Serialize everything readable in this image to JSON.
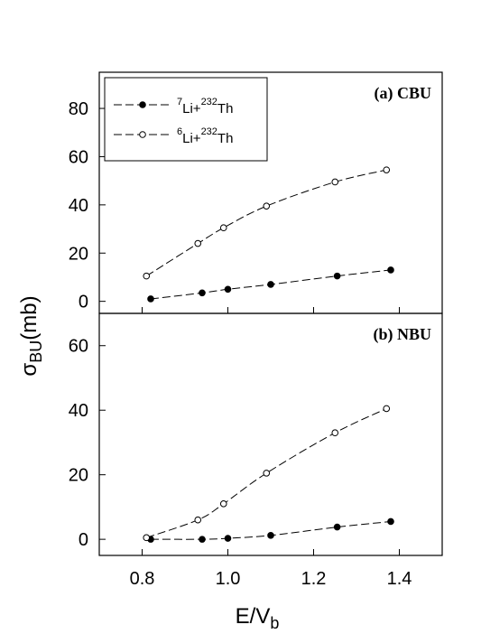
{
  "chart_data": [
    {
      "type": "line",
      "panel_label": "(a) CBU",
      "xlim": [
        0.7,
        1.5
      ],
      "ylim": [
        -5,
        95
      ],
      "x_ticks": [
        "0.8",
        "1.0",
        "1.2",
        "1.4"
      ],
      "y_ticks": [
        "0",
        "20",
        "40",
        "60",
        "80"
      ],
      "series": [
        {
          "legend_isotope": "7",
          "legend_mid": "Li+",
          "legend_target_mass": "232",
          "legend_target": "Th",
          "marker": "filled-circle",
          "x": [
            0.82,
            0.94,
            1.0,
            1.1,
            1.255,
            1.38
          ],
          "y": [
            1.0,
            3.5,
            5.0,
            7.0,
            10.5,
            13.0
          ]
        },
        {
          "legend_isotope": "6",
          "legend_mid": "Li+",
          "legend_target_mass": "232",
          "legend_target": "Th",
          "marker": "open-circle",
          "x": [
            0.81,
            0.93,
            0.99,
            1.09,
            1.25,
            1.37
          ],
          "y": [
            10.5,
            24.0,
            30.5,
            39.5,
            49.5,
            54.5
          ]
        }
      ]
    },
    {
      "type": "line",
      "panel_label": "(b) NBU",
      "xlim": [
        0.7,
        1.5
      ],
      "ylim": [
        -5,
        70
      ],
      "x_ticks": [
        "0.8",
        "1.0",
        "1.2",
        "1.4"
      ],
      "y_ticks": [
        "0",
        "20",
        "40",
        "60"
      ],
      "series": [
        {
          "marker": "filled-circle",
          "x": [
            0.82,
            0.94,
            1.0,
            1.1,
            1.255,
            1.38
          ],
          "y": [
            0.0,
            0.0,
            0.3,
            1.2,
            3.8,
            5.5
          ]
        },
        {
          "marker": "open-circle",
          "x": [
            0.81,
            0.93,
            0.99,
            1.09,
            1.25,
            1.37
          ],
          "y": [
            0.5,
            6.0,
            11.0,
            20.5,
            33.0,
            40.5
          ]
        }
      ]
    }
  ],
  "axes": {
    "y_symbol": "σ",
    "y_sub": "BU",
    "y_unit": "(mb)",
    "x_main": "E/V",
    "x_sub": "b"
  }
}
